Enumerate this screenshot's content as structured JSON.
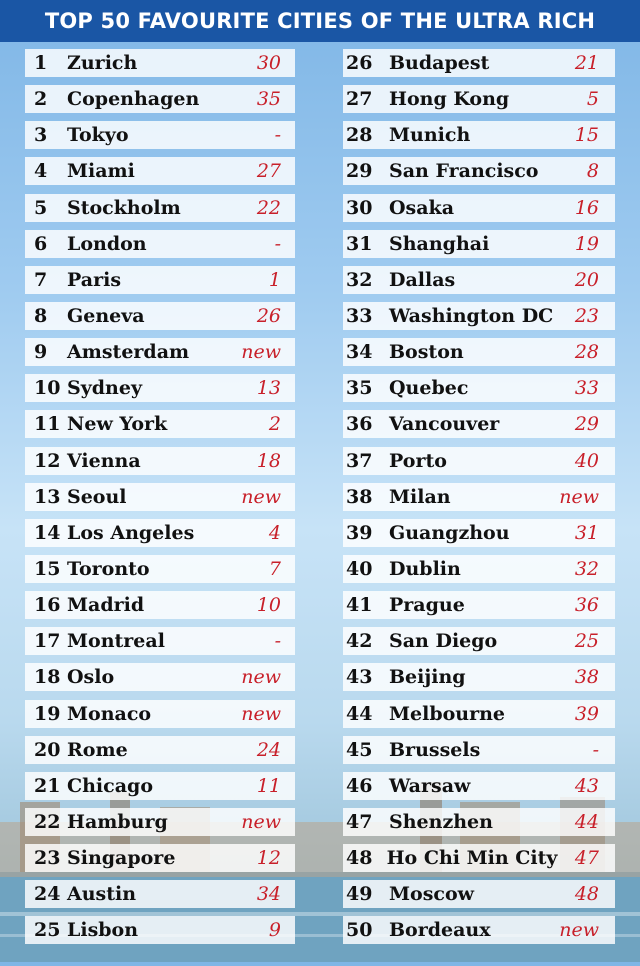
{
  "title": "TOP 50 FAVOURITE CITIES OF THE ULTRA RICH",
  "colors": {
    "title_bg": "#1a56a5",
    "rank_change": "#c8202a"
  },
  "left_column": [
    {
      "rank": "1",
      "city": "Zurich",
      "previous": "30"
    },
    {
      "rank": "2",
      "city": "Copenhagen",
      "previous": "35"
    },
    {
      "rank": "3",
      "city": "Tokyo",
      "previous": "-"
    },
    {
      "rank": "4",
      "city": "Miami",
      "previous": "27"
    },
    {
      "rank": "5",
      "city": "Stockholm",
      "previous": "22"
    },
    {
      "rank": "6",
      "city": "London",
      "previous": "-"
    },
    {
      "rank": "7",
      "city": "Paris",
      "previous": "1"
    },
    {
      "rank": "8",
      "city": "Geneva",
      "previous": "26"
    },
    {
      "rank": "9",
      "city": "Amsterdam",
      "previous": "new"
    },
    {
      "rank": "10",
      "city": "Sydney",
      "previous": "13"
    },
    {
      "rank": "11",
      "city": "New York",
      "previous": "2"
    },
    {
      "rank": "12",
      "city": "Vienna",
      "previous": "18"
    },
    {
      "rank": "13",
      "city": "Seoul",
      "previous": "new"
    },
    {
      "rank": "14",
      "city": "Los Angeles",
      "previous": "4"
    },
    {
      "rank": "15",
      "city": "Toronto",
      "previous": "7"
    },
    {
      "rank": "16",
      "city": "Madrid",
      "previous": "10"
    },
    {
      "rank": "17",
      "city": "Montreal",
      "previous": "-"
    },
    {
      "rank": "18",
      "city": "Oslo",
      "previous": "new"
    },
    {
      "rank": "19",
      "city": "Monaco",
      "previous": "new"
    },
    {
      "rank": "20",
      "city": "Rome",
      "previous": "24"
    },
    {
      "rank": "21",
      "city": "Chicago",
      "previous": "11"
    },
    {
      "rank": "22",
      "city": "Hamburg",
      "previous": "new"
    },
    {
      "rank": "23",
      "city": "Singapore",
      "previous": "12"
    },
    {
      "rank": "24",
      "city": "Austin",
      "previous": "34"
    },
    {
      "rank": "25",
      "city": "Lisbon",
      "previous": "9"
    }
  ],
  "right_column": [
    {
      "rank": "26",
      "city": "Budapest",
      "previous": "21"
    },
    {
      "rank": "27",
      "city": "Hong Kong",
      "previous": "5"
    },
    {
      "rank": "28",
      "city": "Munich",
      "previous": "15"
    },
    {
      "rank": "29",
      "city": "San Francisco",
      "previous": "8"
    },
    {
      "rank": "30",
      "city": "Osaka",
      "previous": "16"
    },
    {
      "rank": "31",
      "city": "Shanghai",
      "previous": "19"
    },
    {
      "rank": "32",
      "city": "Dallas",
      "previous": "20"
    },
    {
      "rank": "33",
      "city": "Washington DC",
      "previous": "23"
    },
    {
      "rank": "34",
      "city": "Boston",
      "previous": "28"
    },
    {
      "rank": "35",
      "city": "Quebec",
      "previous": "33"
    },
    {
      "rank": "36",
      "city": "Vancouver",
      "previous": "29"
    },
    {
      "rank": "37",
      "city": "Porto",
      "previous": "40"
    },
    {
      "rank": "38",
      "city": "Milan",
      "previous": "new"
    },
    {
      "rank": "39",
      "city": "Guangzhou",
      "previous": "31"
    },
    {
      "rank": "40",
      "city": "Dublin",
      "previous": "32"
    },
    {
      "rank": "41",
      "city": "Prague",
      "previous": "36"
    },
    {
      "rank": "42",
      "city": "San Diego",
      "previous": "25"
    },
    {
      "rank": "43",
      "city": "Beijing",
      "previous": "38"
    },
    {
      "rank": "44",
      "city": "Melbourne",
      "previous": "39"
    },
    {
      "rank": "45",
      "city": "Brussels",
      "previous": "-"
    },
    {
      "rank": "46",
      "city": "Warsaw",
      "previous": "43"
    },
    {
      "rank": "47",
      "city": "Shenzhen",
      "previous": "44"
    },
    {
      "rank": "48",
      "city": "Ho Chi Min City",
      "previous": "47"
    },
    {
      "rank": "49",
      "city": "Moscow",
      "previous": "48"
    },
    {
      "rank": "50",
      "city": "Bordeaux",
      "previous": "new"
    }
  ]
}
